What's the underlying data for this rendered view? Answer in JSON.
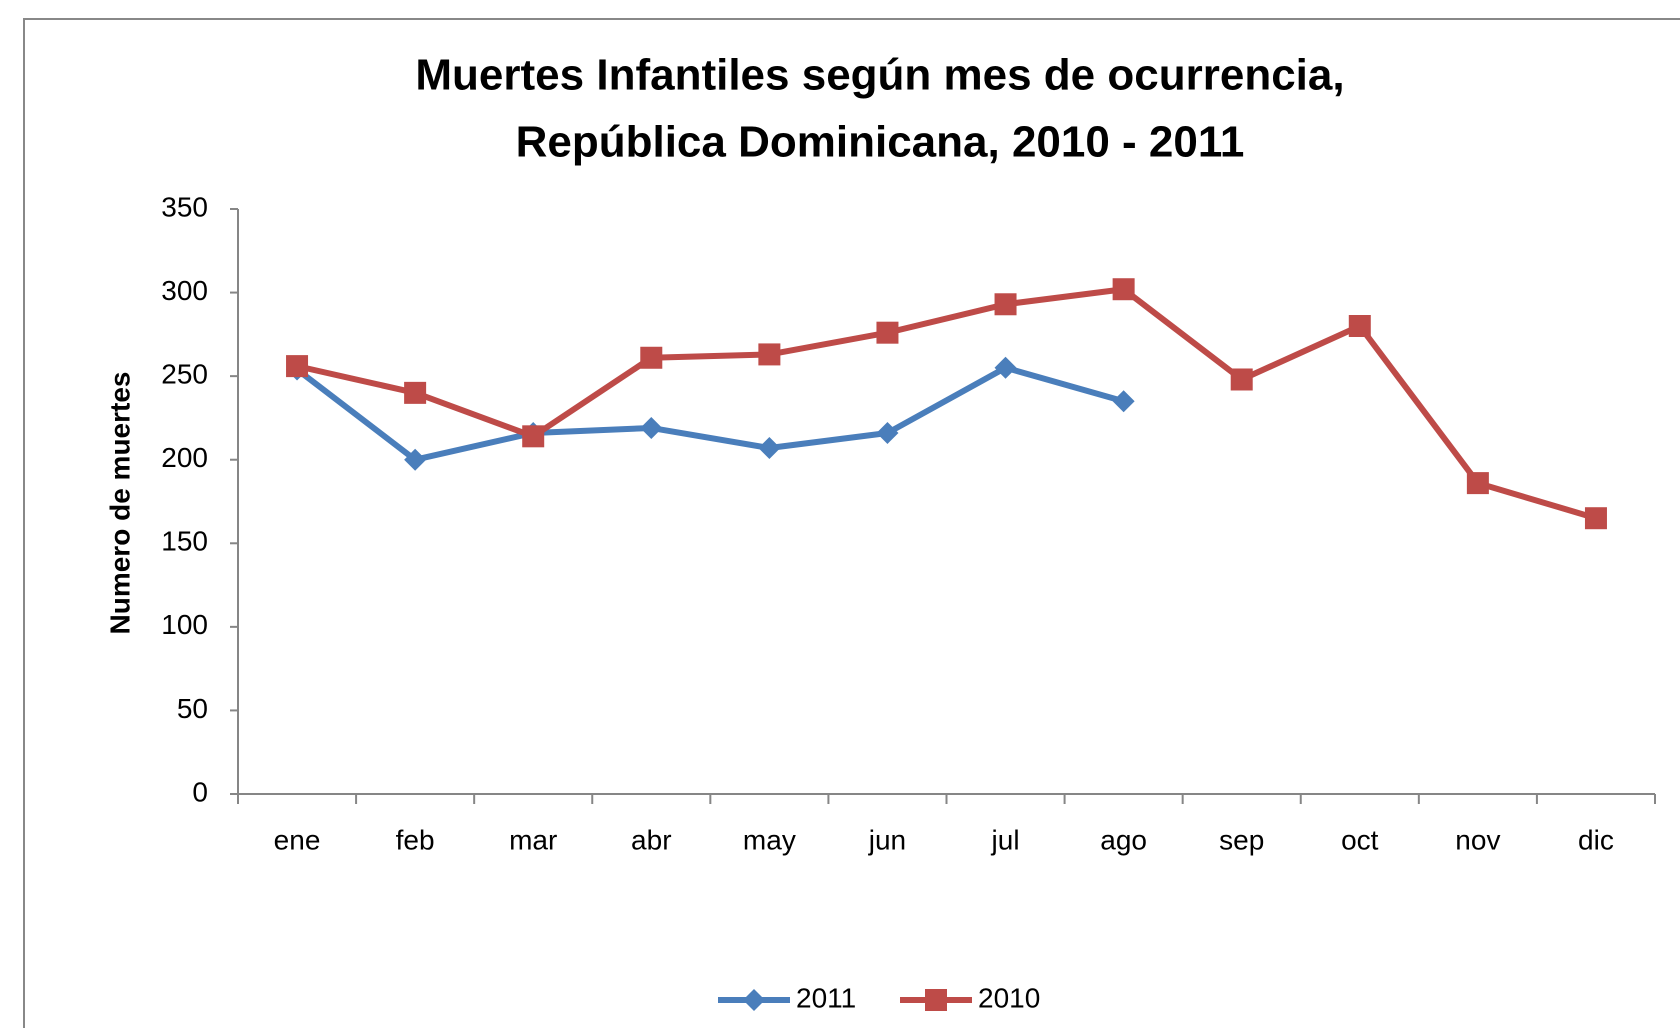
{
  "chart_data": {
    "type": "line",
    "title": [
      "Muertes Infantiles según mes de ocurrencia,",
      "República Dominicana,  2010 - 2011"
    ],
    "y_label": "Numero de muertes",
    "categories": [
      "ene",
      "feb",
      "mar",
      "abr",
      "may",
      "jun",
      "jul",
      "ago",
      "sep",
      "oct",
      "nov",
      "dic"
    ],
    "series": [
      {
        "name": "2011",
        "color": "#4a7ebb",
        "marker": "diamond",
        "values": [
          254,
          200,
          216,
          219,
          207,
          216,
          255,
          235,
          null,
          null,
          null,
          null
        ]
      },
      {
        "name": "2010",
        "color": "#be4b48",
        "marker": "square",
        "values": [
          256,
          240,
          214,
          261,
          263,
          276,
          293,
          302,
          248,
          280,
          186,
          165
        ]
      }
    ],
    "ylim": [
      0,
      350
    ],
    "yticks": [
      0,
      50,
      100,
      150,
      200,
      250,
      300,
      350
    ],
    "grid": false,
    "legend": "bottom"
  }
}
